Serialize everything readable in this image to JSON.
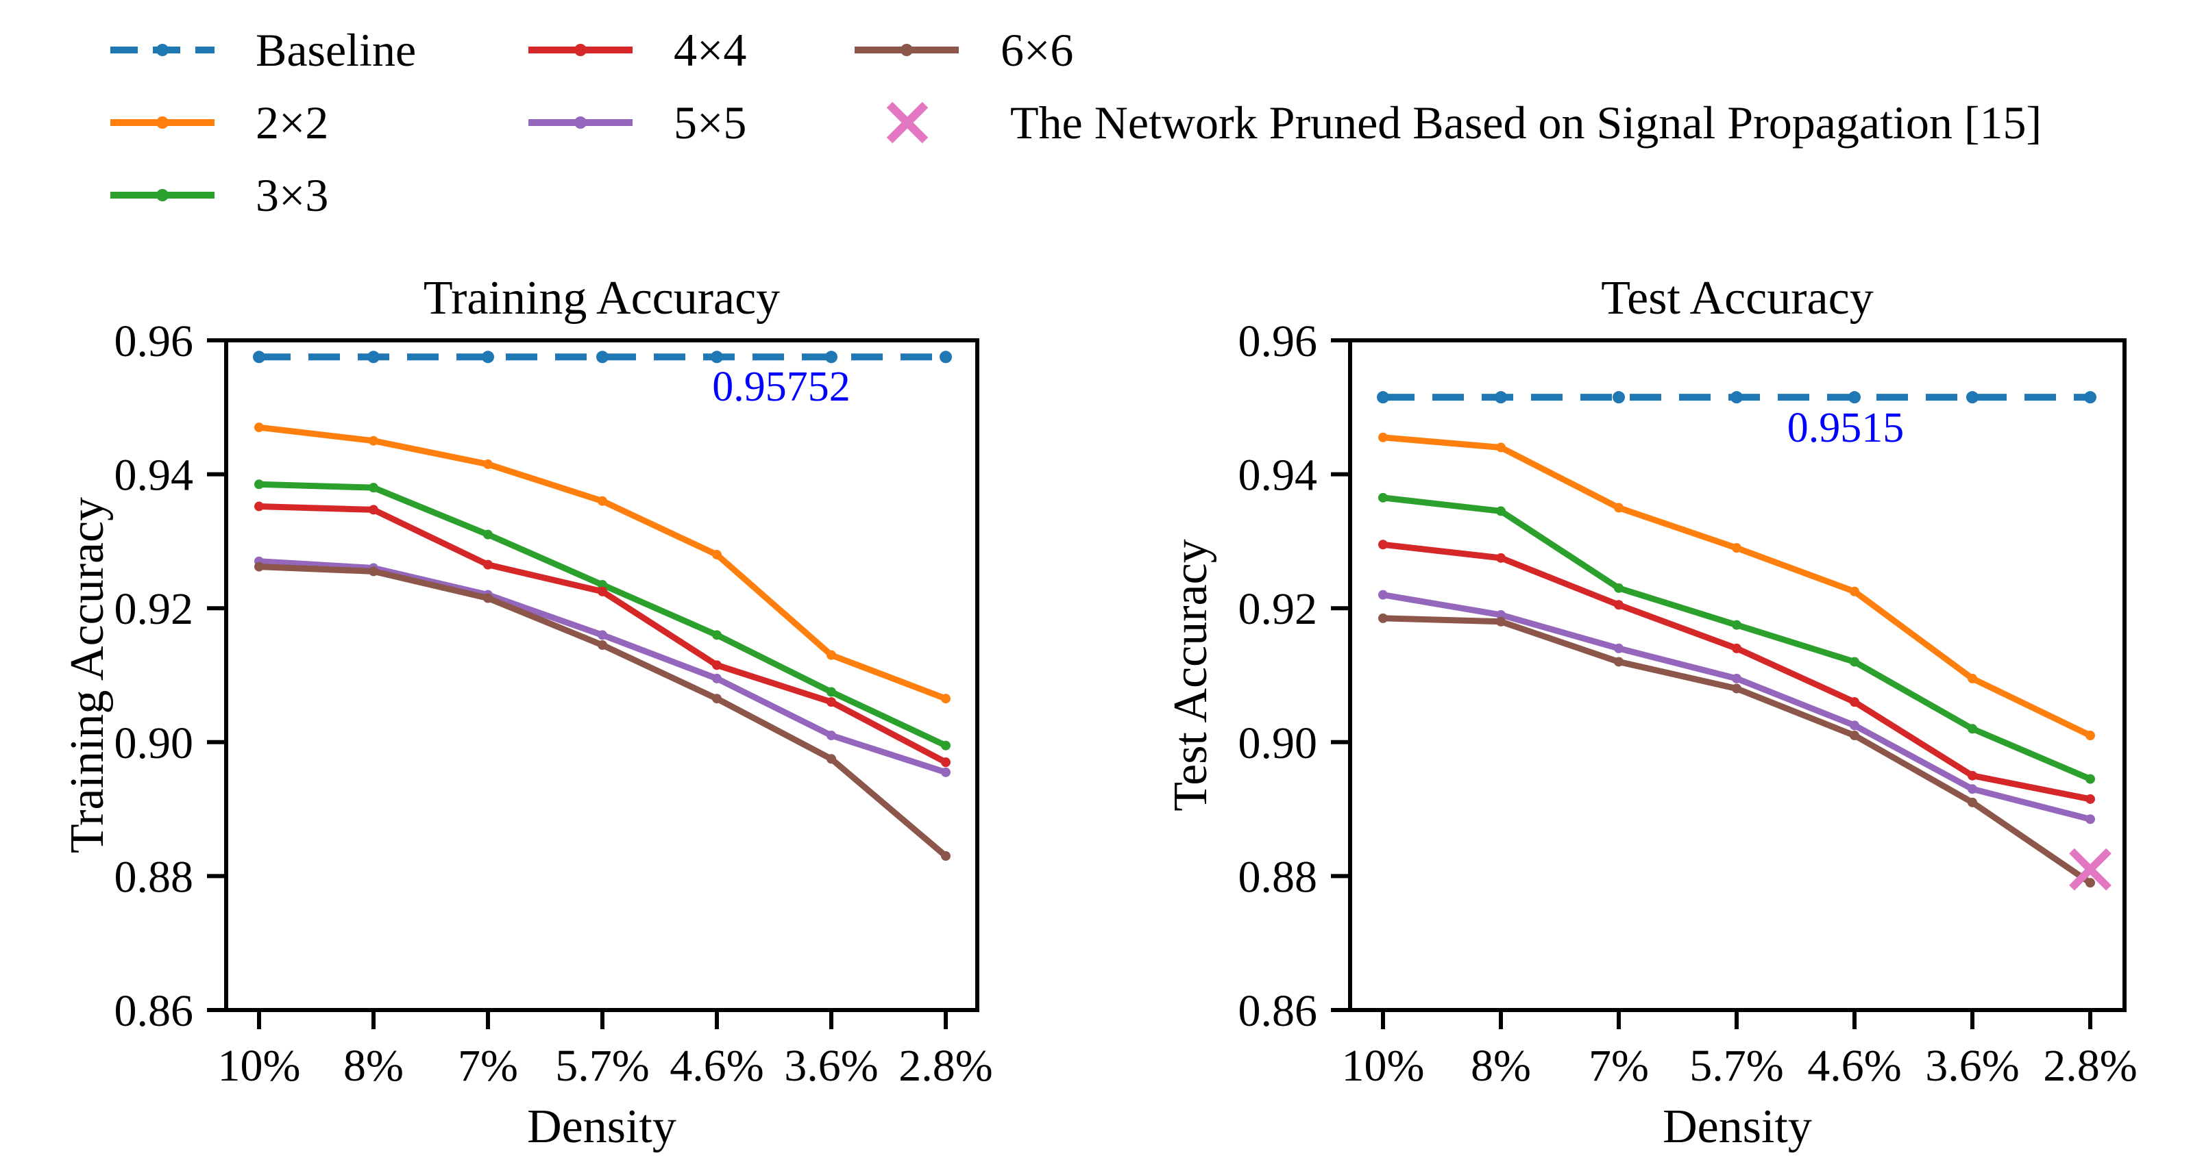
{
  "legend": {
    "items": [
      {
        "label": "Baseline",
        "color": "#1f77b4",
        "style": "dashed-line"
      },
      {
        "label": "2×2",
        "color": "#ff7f0e",
        "style": "line"
      },
      {
        "label": "3×3",
        "color": "#2ca02c",
        "style": "line"
      },
      {
        "label": "4×4",
        "color": "#d62728",
        "style": "line"
      },
      {
        "label": "5×5",
        "color": "#9467bd",
        "style": "line"
      },
      {
        "label": "6×6",
        "color": "#8c564b",
        "style": "line"
      },
      {
        "label": "The Network Pruned Based on Signal Propagation [15]",
        "color": "#e377c2",
        "style": "x-marker"
      }
    ]
  },
  "chart_data": [
    {
      "type": "line",
      "title": "Training Accuracy",
      "xlabel": "Density",
      "ylabel": "Training Accuracy",
      "categories": [
        "10%",
        "8%",
        "7%",
        "5.7%",
        "4.6%",
        "3.6%",
        "2.8%"
      ],
      "ylim": [
        0.86,
        0.96
      ],
      "yticks": [
        0.96,
        0.94,
        0.92,
        0.9,
        0.88,
        0.86
      ],
      "grid": false,
      "baseline": {
        "name": "Baseline",
        "value": 0.95752,
        "annotation": "0.95752",
        "color": "#1f77b4",
        "annotation_color": "#0000ff"
      },
      "series": [
        {
          "name": "2×2",
          "color": "#ff7f0e",
          "values": [
            0.947,
            0.945,
            0.9415,
            0.936,
            0.928,
            0.913,
            0.9065
          ]
        },
        {
          "name": "3×3",
          "color": "#2ca02c",
          "values": [
            0.9385,
            0.938,
            0.931,
            0.9235,
            0.916,
            0.9075,
            0.8995
          ]
        },
        {
          "name": "4×4",
          "color": "#d62728",
          "values": [
            0.9352,
            0.9347,
            0.9265,
            0.9225,
            0.9115,
            0.906,
            0.897
          ]
        },
        {
          "name": "5×5",
          "color": "#9467bd",
          "values": [
            0.927,
            0.926,
            0.922,
            0.916,
            0.9095,
            0.901,
            0.8955
          ]
        },
        {
          "name": "6×6",
          "color": "#8c564b",
          "values": [
            0.9262,
            0.9255,
            0.9215,
            0.9145,
            0.9065,
            0.8975,
            0.883
          ]
        }
      ]
    },
    {
      "type": "line",
      "title": "Test Accuracy",
      "xlabel": "Density",
      "ylabel": "Test Accuracy",
      "categories": [
        "10%",
        "8%",
        "7%",
        "5.7%",
        "4.6%",
        "3.6%",
        "2.8%"
      ],
      "ylim": [
        0.86,
        0.96
      ],
      "yticks": [
        0.96,
        0.94,
        0.92,
        0.9,
        0.88,
        0.86
      ],
      "grid": false,
      "baseline": {
        "name": "Baseline",
        "value": 0.9515,
        "annotation": "0.9515",
        "color": "#1f77b4",
        "annotation_color": "#0000ff"
      },
      "series": [
        {
          "name": "2×2",
          "color": "#ff7f0e",
          "values": [
            0.9455,
            0.944,
            0.935,
            0.929,
            0.9225,
            0.9095,
            0.901
          ]
        },
        {
          "name": "3×3",
          "color": "#2ca02c",
          "values": [
            0.9365,
            0.9345,
            0.923,
            0.9175,
            0.912,
            0.902,
            0.8945
          ]
        },
        {
          "name": "4×4",
          "color": "#d62728",
          "values": [
            0.9295,
            0.9275,
            0.9205,
            0.914,
            0.906,
            0.895,
            0.8915
          ]
        },
        {
          "name": "5×5",
          "color": "#9467bd",
          "values": [
            0.922,
            0.919,
            0.914,
            0.9095,
            0.9025,
            0.893,
            0.8885
          ]
        },
        {
          "name": "6×6",
          "color": "#8c564b",
          "values": [
            0.9185,
            0.918,
            0.912,
            0.908,
            0.901,
            0.891,
            0.879
          ]
        }
      ],
      "extra_point": {
        "name": "The Network Pruned Based on Signal Propagation [15]",
        "category": "2.8%",
        "value": 0.881,
        "color": "#e377c2",
        "marker": "x"
      }
    }
  ]
}
